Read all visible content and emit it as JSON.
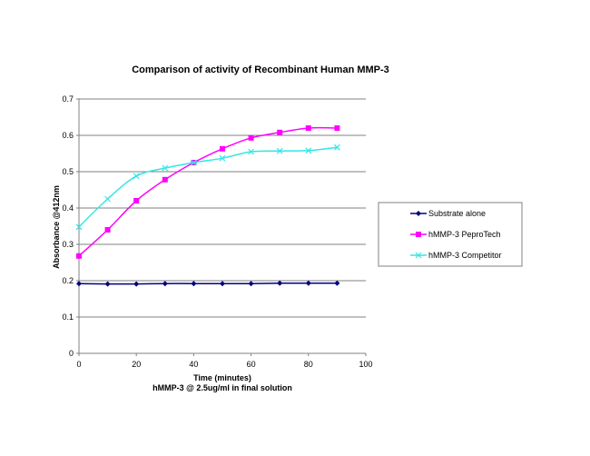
{
  "chart_data": {
    "type": "line",
    "title": "Comparison of activity of Recombinant Human MMP-3",
    "xlabel": "Time (minutes)",
    "xlabel_sub": "hMMP-3 @ 2.5ug/ml in final solution",
    "ylabel": "Absorbance @412nm",
    "xlim": [
      0,
      100
    ],
    "ylim": [
      0,
      0.7
    ],
    "x_ticks": [
      "0",
      "20",
      "40",
      "60",
      "80",
      "100"
    ],
    "y_ticks": [
      "0",
      "0.1",
      "0.2",
      "0.3",
      "0.4",
      "0.5",
      "0.6",
      "0.7"
    ],
    "grid": "horizontal",
    "legend_position": "right",
    "x": [
      0,
      10,
      20,
      30,
      40,
      50,
      60,
      70,
      80,
      90
    ],
    "series": [
      {
        "name": "Substrate alone",
        "color": "#000080",
        "marker": "diamond",
        "values": [
          0.192,
          0.191,
          0.191,
          0.192,
          0.192,
          0.192,
          0.192,
          0.193,
          0.193,
          0.193
        ]
      },
      {
        "name": "hMMP-3 PeproTech",
        "color": "#ff00ff",
        "marker": "square",
        "values": [
          0.268,
          0.34,
          0.42,
          0.478,
          0.525,
          0.563,
          0.593,
          0.608,
          0.62,
          0.62
        ]
      },
      {
        "name": "hMMP-3 Competitor",
        "color": "#33e6e6",
        "marker": "x",
        "values": [
          0.348,
          0.425,
          0.488,
          0.51,
          0.525,
          0.537,
          0.555,
          0.557,
          0.558,
          0.567
        ]
      }
    ]
  }
}
